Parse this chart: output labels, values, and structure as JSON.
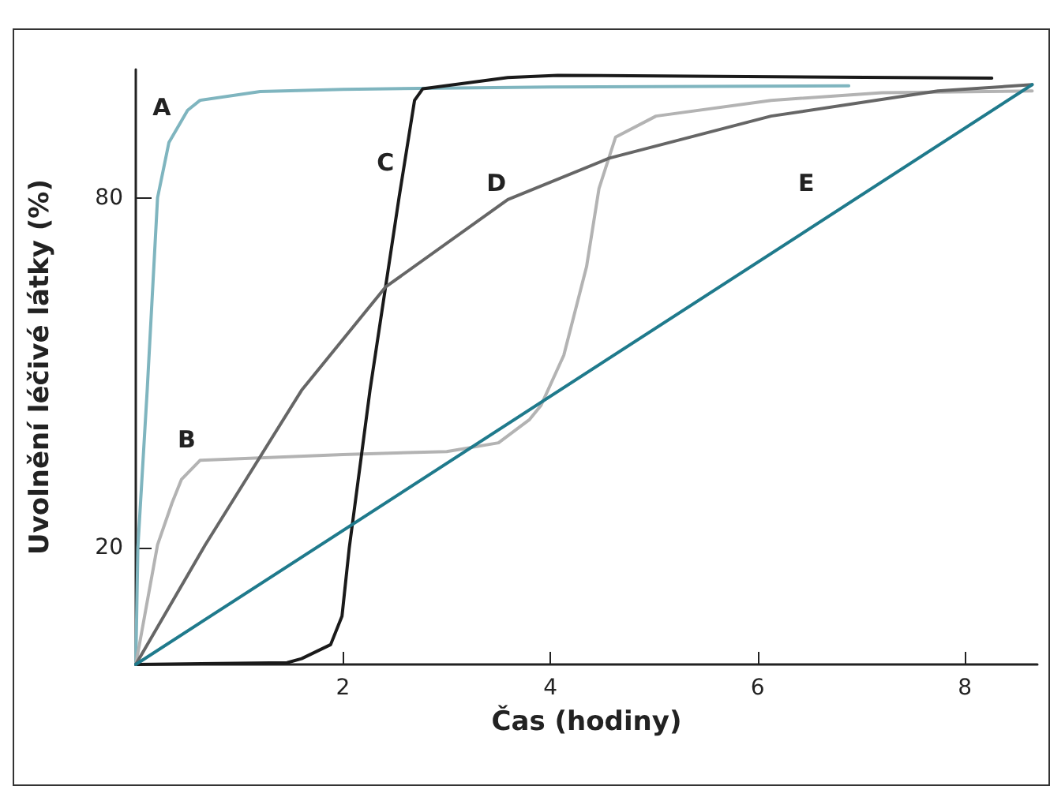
{
  "chart_data": {
    "type": "line",
    "xlabel": "Čas (hodiny)",
    "ylabel": "Uvolnění léčivé látky (%)",
    "xlim": [
      0,
      8.7
    ],
    "ylim": [
      0,
      102
    ],
    "xticks": [
      2,
      4,
      6,
      8
    ],
    "yticks": [
      20,
      80
    ],
    "grid": false,
    "legend": false,
    "marker": "none",
    "line_style": "solid",
    "series": [
      {
        "name": "A",
        "color": "#7fb5bf",
        "x": [
          0,
          0.02,
          0.11,
          0.21,
          0.32,
          0.5,
          0.62,
          1.2,
          2,
          4,
          6.88
        ],
        "values": [
          0,
          20,
          47,
          80,
          89.5,
          95,
          96.7,
          98.2,
          98.6,
          99,
          99.2
        ]
      },
      {
        "name": "B",
        "color": "#b3b3b3",
        "x": [
          0,
          0.21,
          0.35,
          0.44,
          0.62,
          2,
          3,
          3.5,
          3.8,
          3.91,
          4.13,
          4.35,
          4.47,
          4.63,
          5.02,
          6.13,
          7.2,
          8.65
        ],
        "values": [
          0,
          20.5,
          27.7,
          31.7,
          35,
          36,
          36.5,
          38,
          42,
          44.4,
          53,
          68.2,
          81.6,
          90.4,
          94,
          96.7,
          98,
          98.3
        ]
      },
      {
        "name": "C",
        "color": "#1a1a1a",
        "x": [
          0,
          1.46,
          1.6,
          1.88,
          1.99,
          2.06,
          2.26,
          2.54,
          2.69,
          2.77,
          3.59,
          4.07,
          8.26
        ],
        "values": [
          0,
          0.3,
          1,
          3.4,
          8.3,
          20,
          47,
          80,
          96.7,
          98.7,
          100.6,
          101,
          100.5
        ]
      },
      {
        "name": "D",
        "color": "#666666",
        "x": [
          0,
          0.67,
          1.6,
          2.41,
          3.59,
          4.57,
          6.13,
          7.74,
          8.65
        ],
        "values": [
          0,
          20.5,
          47,
          64.7,
          79.7,
          86.8,
          94,
          98.3,
          99.4
        ]
      },
      {
        "name": "E",
        "color": "#1f7a8c",
        "x": [
          0,
          8.65
        ],
        "values": [
          0,
          99.4
        ]
      }
    ]
  }
}
